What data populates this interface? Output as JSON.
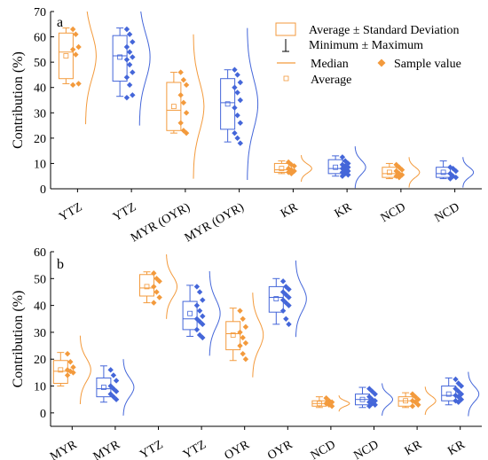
{
  "colors": {
    "orange": "#F39A3C",
    "blue": "#4466D9"
  },
  "legend": {
    "box_label": "Average ± Standard Deviation",
    "whisker_label": "Minimum ± Maximum",
    "median_label": "Median",
    "sample_label": "Sample value",
    "average_label": "Average"
  },
  "chart_data": [
    {
      "type": "box",
      "panel": "a",
      "ylabel": "Contribution (%)",
      "ylim": [
        0,
        70
      ],
      "yticks": [
        0,
        10,
        20,
        30,
        40,
        50,
        60,
        70
      ],
      "categories": [
        "YTZ",
        "YTZ",
        "MYR (OYR)",
        "MYR (OYR)",
        "KR",
        "KR",
        "NCD",
        "NCD"
      ],
      "series_color": [
        "orange",
        "blue",
        "orange",
        "blue",
        "orange",
        "blue",
        "orange",
        "blue"
      ],
      "stats": [
        {
          "mean": 52.5,
          "median": 54.0,
          "sd_low": 43.5,
          "sd_high": 61.5,
          "min": 41.5,
          "max": 63.5
        },
        {
          "mean": 52.0,
          "median": 52.5,
          "sd_low": 42.5,
          "sd_high": 60.5,
          "min": 36.5,
          "max": 63.5
        },
        {
          "mean": 32.5,
          "median": 31.0,
          "sd_low": 23.0,
          "sd_high": 42.0,
          "min": 22.0,
          "max": 46.0
        },
        {
          "mean": 33.5,
          "median": 34.0,
          "sd_low": 23.5,
          "sd_high": 43.5,
          "min": 18.5,
          "max": 47.0
        },
        {
          "mean": 8.0,
          "median": 7.5,
          "sd_low": 6.5,
          "sd_high": 10.0,
          "min": 6.0,
          "max": 11.0
        },
        {
          "mean": 8.5,
          "median": 8.0,
          "sd_low": 6.0,
          "sd_high": 11.5,
          "min": 5.0,
          "max": 13.0
        },
        {
          "mean": 6.5,
          "median": 6.0,
          "sd_low": 4.5,
          "sd_high": 8.5,
          "min": 4.0,
          "max": 10.0
        },
        {
          "mean": 6.5,
          "median": 6.0,
          "sd_low": 4.5,
          "sd_high": 8.5,
          "min": 4.0,
          "max": 11.0
        }
      ],
      "samples": [
        [
          63,
          61,
          56,
          55,
          53,
          41.5,
          41
        ],
        [
          63,
          61,
          58,
          56,
          54,
          52,
          51,
          49,
          46,
          44,
          41,
          37,
          36
        ],
        [
          46,
          43,
          41,
          37,
          34,
          30,
          26,
          23,
          22
        ],
        [
          47,
          45,
          42,
          40,
          38,
          35,
          32,
          29,
          26,
          22,
          20,
          18
        ],
        [
          10.5,
          9.5,
          9,
          8,
          7.5,
          7,
          6.5,
          6
        ],
        [
          12.5,
          11,
          10,
          9.5,
          9,
          8.5,
          8,
          7.5,
          7,
          6.5,
          6,
          5.5,
          5
        ],
        [
          9.5,
          8.5,
          7.5,
          7,
          6,
          5.5,
          5,
          4.5
        ],
        [
          8.5,
          8,
          7,
          6,
          5,
          4.5,
          4
        ]
      ]
    },
    {
      "type": "box",
      "panel": "b",
      "ylabel": "Contribution (%)",
      "ylim": [
        -5,
        60
      ],
      "yticks": [
        0,
        10,
        20,
        30,
        40,
        50,
        60
      ],
      "categories": [
        "MYR",
        "MYR",
        "YTZ",
        "YTZ",
        "OYR",
        "OYR",
        "NCD",
        "NCD",
        "KR",
        "KR"
      ],
      "series_color": [
        "orange",
        "blue",
        "orange",
        "blue",
        "orange",
        "blue",
        "orange",
        "blue",
        "orange",
        "blue"
      ],
      "stats": [
        {
          "mean": 16.0,
          "median": 15.5,
          "sd_low": 11.0,
          "sd_high": 19.5,
          "min": 10.0,
          "max": 22.5
        },
        {
          "mean": 9.5,
          "median": 9.0,
          "sd_low": 6.0,
          "sd_high": 13.0,
          "min": 4.0,
          "max": 17.5
        },
        {
          "mean": 47.0,
          "median": 46.5,
          "sd_low": 43.5,
          "sd_high": 51.5,
          "min": 41.0,
          "max": 52.5
        },
        {
          "mean": 37.0,
          "median": 35.0,
          "sd_low": 31.0,
          "sd_high": 41.5,
          "min": 28.5,
          "max": 47.5
        },
        {
          "mean": 29.0,
          "median": 29.5,
          "sd_low": 23.5,
          "sd_high": 34.0,
          "min": 19.5,
          "max": 39.0
        },
        {
          "mean": 42.5,
          "median": 43.0,
          "sd_low": 37.5,
          "sd_high": 47.0,
          "min": 33.0,
          "max": 50.0
        },
        {
          "mean": 3.5,
          "median": 3.5,
          "sd_low": 2.5,
          "sd_high": 4.5,
          "min": 2.0,
          "max": 6.0
        },
        {
          "mean": 5.0,
          "median": 5.0,
          "sd_low": 3.0,
          "sd_high": 7.0,
          "min": 2.0,
          "max": 9.5
        },
        {
          "mean": 4.5,
          "median": 4.5,
          "sd_low": 2.5,
          "sd_high": 6.0,
          "min": 2.0,
          "max": 7.5
        },
        {
          "mean": 7.0,
          "median": 6.5,
          "sd_low": 4.5,
          "sd_high": 10.0,
          "min": 3.0,
          "max": 13.0
        }
      ],
      "samples": [
        [
          22,
          19,
          17,
          16,
          15.5,
          15,
          14
        ],
        [
          16,
          14,
          12,
          10,
          9,
          8,
          7,
          6,
          5
        ],
        [
          52,
          50,
          49,
          47,
          45,
          43,
          41
        ],
        [
          47,
          45,
          42,
          40,
          38,
          36,
          35,
          34,
          33,
          31,
          29,
          28
        ],
        [
          38,
          35,
          32,
          30,
          28,
          26,
          25,
          22,
          20
        ],
        [
          49,
          47,
          46,
          45,
          44,
          43,
          42,
          41,
          40,
          38,
          35,
          33
        ],
        [
          5.5,
          4.5,
          4,
          3.5,
          3,
          2.5
        ],
        [
          9,
          8,
          7,
          6,
          5,
          4.5,
          4,
          3.5,
          3,
          2.5
        ],
        [
          7,
          6,
          5,
          4.5,
          4,
          3,
          2.5
        ],
        [
          12.5,
          11,
          10,
          9,
          8,
          7,
          6.5,
          6,
          5,
          4.5,
          4
        ]
      ]
    }
  ]
}
